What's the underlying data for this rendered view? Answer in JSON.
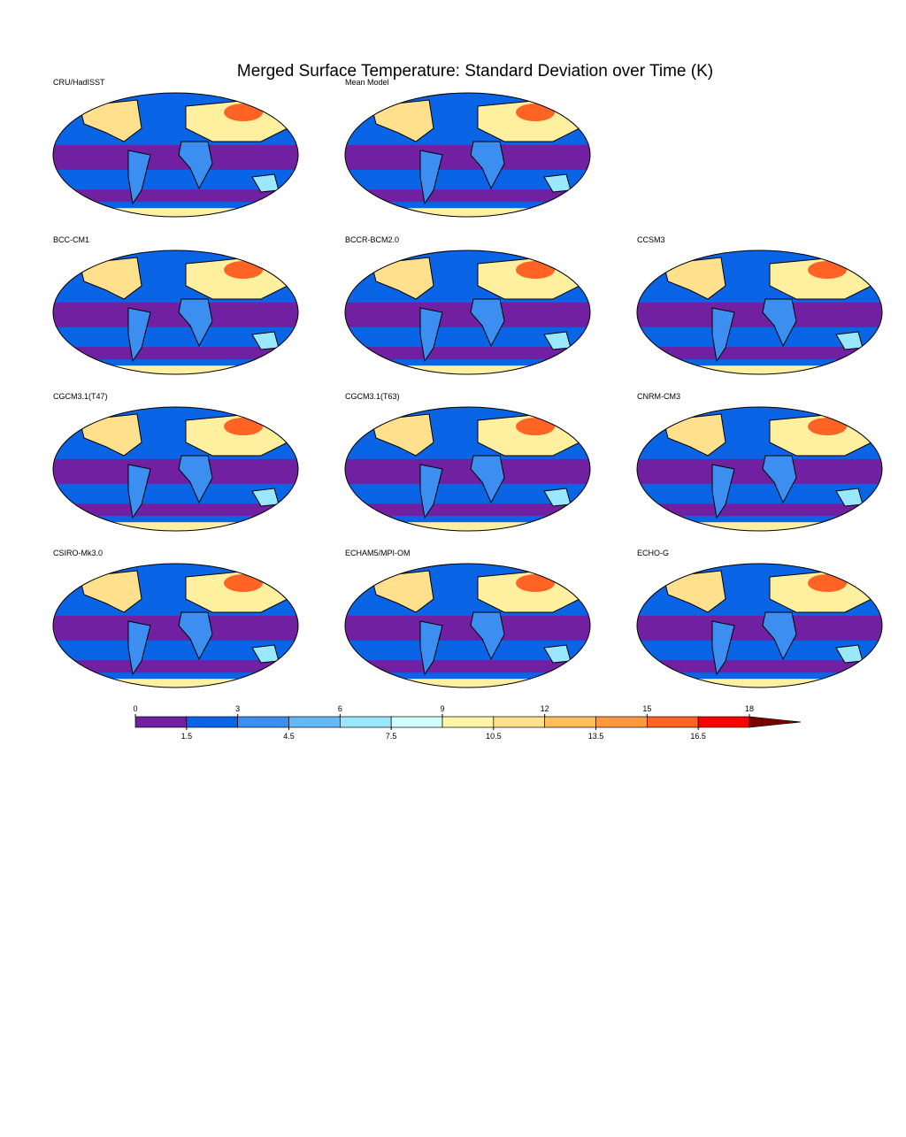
{
  "title": "Merged Surface Temperature: Standard Deviation over Time (K)",
  "panels": [
    {
      "label": "CRU/HadISST"
    },
    {
      "label": "Mean Model"
    },
    {
      "label": "BCC-CM1"
    },
    {
      "label": "BCCR-BCM2.0"
    },
    {
      "label": "CCSM3"
    },
    {
      "label": "CGCM3.1(T47)"
    },
    {
      "label": "CGCM3.1(T63)"
    },
    {
      "label": "CNRM-CM3"
    },
    {
      "label": "CSIRO-Mk3.0"
    },
    {
      "label": "ECHAM5/MPI-OM"
    },
    {
      "label": "ECHO-G"
    }
  ],
  "colorbar": {
    "range": [
      0,
      18
    ],
    "ticks": [
      0,
      3,
      6,
      9,
      12,
      15,
      18
    ],
    "minor_ticks": [
      1.5,
      4.5,
      7.5,
      10.5,
      13.5,
      16.5
    ],
    "colors": [
      "#7020a0",
      "#0a64e6",
      "#3c8ff0",
      "#64baf8",
      "#9ae8ff",
      "#d2ffff",
      "#fff5a8",
      "#ffe08c",
      "#ffc05c",
      "#ff9a40",
      "#ff6424",
      "#ff0000"
    ],
    "extend_color": "#7a0000"
  }
}
